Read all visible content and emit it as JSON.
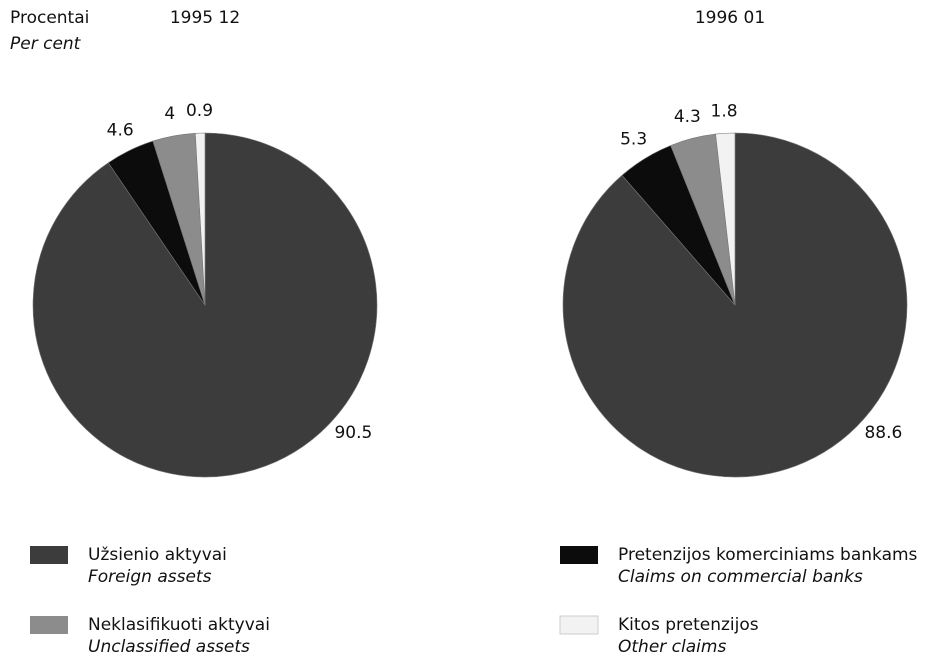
{
  "unit_label": "Procentai",
  "unit_label_en": "Per cent",
  "legend": {
    "names": [
      "Užsienio aktyvai",
      "Pretenzijos komerciniams bankams",
      "Neklasifikuoti aktyvai",
      "Kitos pretenzijos"
    ],
    "names_en": [
      "Foreign assets",
      "Claims on commercial banks",
      "Unclassified assets",
      "Other claims"
    ],
    "colors": [
      "#3c3c3c",
      "#0c0c0c",
      "#8c8c8c",
      "#f2f2f2"
    ]
  },
  "chart_data": [
    {
      "type": "pie",
      "title": "1995 12",
      "values": [
        90.5,
        4.6,
        4.0,
        0.9
      ]
    },
    {
      "type": "pie",
      "title": "1996 01",
      "values": [
        88.6,
        5.3,
        4.3,
        1.8
      ]
    }
  ]
}
